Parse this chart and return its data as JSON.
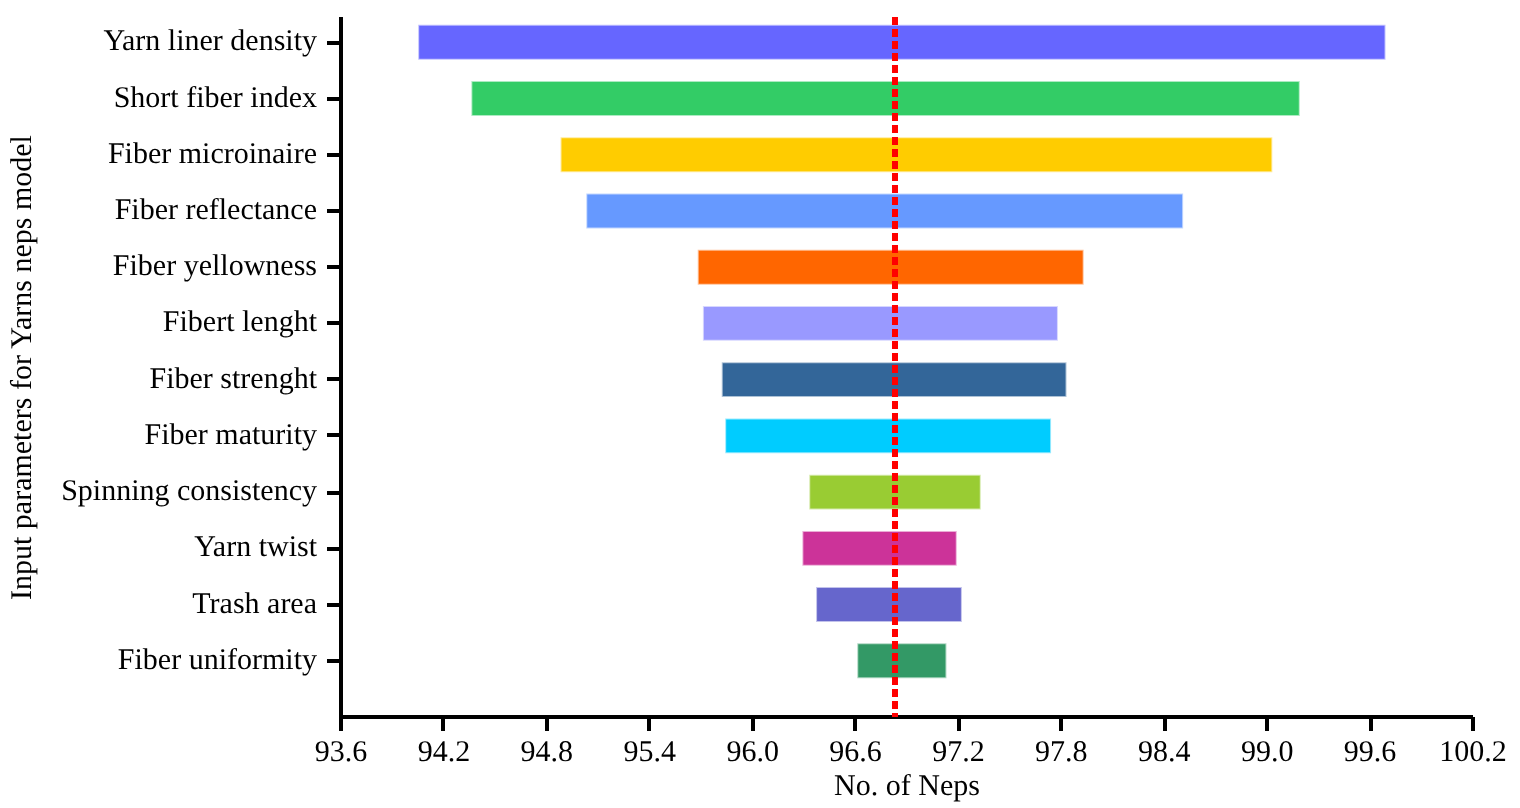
{
  "chart_data": {
    "type": "bar",
    "orientation": "horizontal",
    "xlabel": "No. of Neps",
    "ylabel": "Input parameters for Yarns neps model",
    "categories": [
      "Yarn liner density",
      "Short fiber index",
      "Fiber microinaire",
      "Fiber reflectance",
      "Fiber yellowness",
      "Fibert lenght",
      "Fiber strenght",
      "Fiber maturity",
      "Spinning consistency",
      "Yarn twist",
      "Trash area",
      "Fiber uniformity"
    ],
    "base": [
      94.05,
      94.36,
      94.88,
      95.03,
      95.68,
      95.71,
      95.82,
      95.84,
      96.33,
      96.29,
      96.37,
      96.61
    ],
    "values": [
      5.64,
      4.83,
      4.15,
      3.48,
      2.25,
      2.07,
      2.01,
      1.9,
      1.0,
      0.9,
      0.85,
      0.52
    ],
    "colors": [
      "#6666ff",
      "#33cc66",
      "#ffcc00",
      "#6699ff",
      "#ff6600",
      "#9999ff",
      "#336699",
      "#00ccff",
      "#99cc33",
      "#cc3399",
      "#6666cc",
      "#339966"
    ],
    "xlim": [
      93.6,
      100.2
    ],
    "xticks": [
      {
        "value": 93.6,
        "label": "93.6"
      },
      {
        "value": 94.2,
        "label": "94.2"
      },
      {
        "value": 94.8,
        "label": "94.8"
      },
      {
        "value": 95.4,
        "label": "95.4"
      },
      {
        "value": 96.0,
        "label": "96.0"
      },
      {
        "value": 96.6,
        "label": "96.6"
      },
      {
        "value": 97.2,
        "label": "97.2"
      },
      {
        "value": 97.8,
        "label": "97.8"
      },
      {
        "value": 98.4,
        "label": "98.4"
      },
      {
        "value": 99.0,
        "label": "99.0"
      },
      {
        "value": 99.6,
        "label": "99.6"
      },
      {
        "value": 100.2,
        "label": "100.2"
      }
    ],
    "ref_lines": [
      {
        "axis": "x",
        "value": 96.83,
        "color": "#ff0000",
        "line_style": "dotted"
      }
    ],
    "grid": false
  }
}
